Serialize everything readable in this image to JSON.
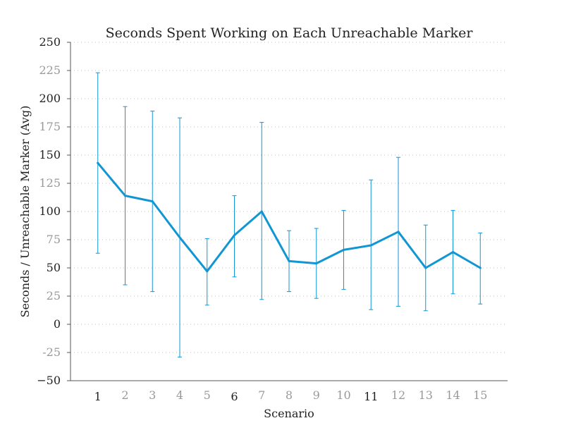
{
  "chart_data": {
    "type": "line",
    "title": "Seconds Spent Working on Each Unreachable Marker",
    "xlabel": "Scenario",
    "ylabel": "Seconds / Unreachable Marker (Avg)",
    "x": [
      1,
      2,
      3,
      4,
      5,
      6,
      7,
      8,
      9,
      10,
      11,
      12,
      13,
      14,
      15
    ],
    "x_ticks": [
      "1",
      "2",
      "3",
      "4",
      "5",
      "6",
      "7",
      "8",
      "9",
      "10",
      "11",
      "12",
      "13",
      "14",
      "15"
    ],
    "x_ticks_emphasized": [
      "1",
      "6",
      "11"
    ],
    "xlim": [
      0,
      16
    ],
    "ylim": [
      -50,
      250
    ],
    "y_ticks": [
      "−50",
      "-25",
      "0",
      "25",
      "50",
      "75",
      "100",
      "125",
      "150",
      "175",
      "200",
      "225",
      "250"
    ],
    "y_tick_values": [
      -50,
      -25,
      0,
      25,
      50,
      75,
      100,
      125,
      150,
      175,
      200,
      225,
      250
    ],
    "y_ticks_emphasized": [
      "−50",
      "0",
      "50",
      "100",
      "150",
      "200",
      "250"
    ],
    "grid": "horizontal dotted",
    "series": [
      {
        "color": "#1196d4",
        "values": [
          143,
          114,
          109,
          77,
          47,
          79,
          100,
          56,
          54,
          66,
          70,
          82,
          50,
          64,
          50
        ],
        "error_low": [
          63,
          35,
          29,
          -29,
          17,
          42,
          22,
          29,
          23,
          31,
          13,
          16,
          12,
          27,
          18
        ],
        "error_high": [
          223,
          193,
          189,
          183,
          76,
          114,
          179,
          83,
          85,
          101,
          128,
          148,
          88,
          101,
          81
        ]
      }
    ]
  }
}
